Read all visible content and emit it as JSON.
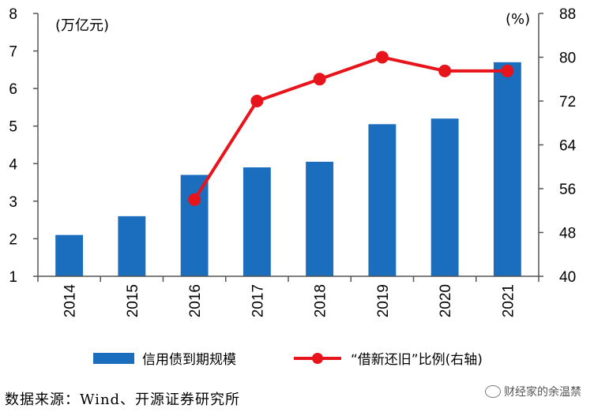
{
  "chart_data": {
    "type": "bar+line",
    "categories": [
      "2014",
      "2015",
      "2016",
      "2017",
      "2018",
      "2019",
      "2020",
      "2021"
    ],
    "left_axis": {
      "unit_label": "(万亿元)",
      "ticks": [
        "1",
        "2",
        "3",
        "4",
        "5",
        "6",
        "7",
        "8"
      ],
      "ylim": [
        1,
        8
      ]
    },
    "right_axis": {
      "unit_label": "(%)",
      "ticks": [
        "40",
        "48",
        "56",
        "64",
        "72",
        "80",
        "88"
      ],
      "ylim": [
        40,
        88
      ]
    },
    "series": [
      {
        "name": "信用债到期规模",
        "type": "bar",
        "axis": "left",
        "color": "#1a6ebd",
        "values": [
          2.1,
          2.6,
          3.7,
          3.9,
          4.05,
          5.05,
          5.2,
          6.7
        ]
      },
      {
        "name": "“借新还旧”比例(右轴)",
        "type": "line",
        "axis": "right",
        "color": "#e8141c",
        "x": [
          "2016",
          "2017",
          "2018",
          "2019",
          "2020",
          "2021"
        ],
        "values": [
          54,
          72,
          76,
          80,
          77.5,
          77.5
        ]
      }
    ],
    "legend_position": "bottom",
    "grid": false
  },
  "source_text": "数据来源：Wind、开源证券研究所",
  "watermark_text": "财经家的余温禁"
}
